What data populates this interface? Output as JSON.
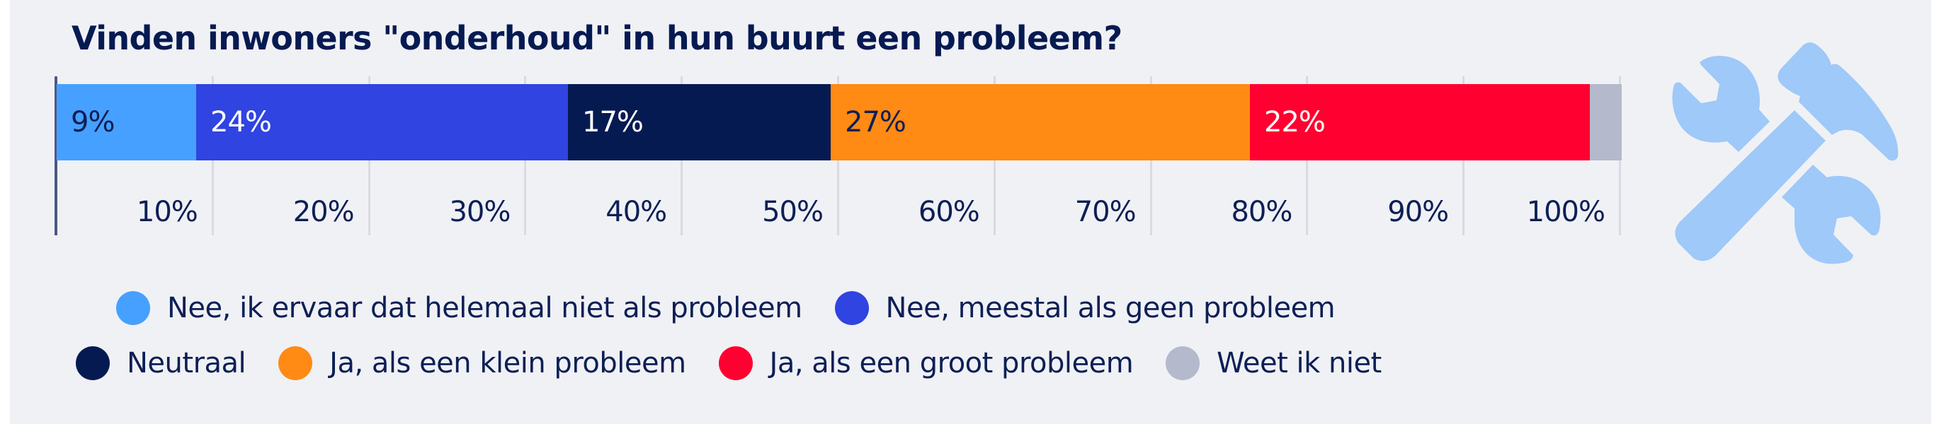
{
  "title": "Vinden inwoners \"onderhoud\" in hun buurt een probleem?",
  "icon": "wrench-hammer-icon",
  "colors": {
    "background": "#f0f1f5",
    "title": "#061a52",
    "text": "#0d1f55",
    "gridline": "#d9dae3",
    "axis": "#4a5a86",
    "icon": "#9ec9f8"
  },
  "segments": [
    {
      "label": "9%",
      "value": 9,
      "color": "#46a0ff",
      "text_color": "#0d1f55"
    },
    {
      "label": "24%",
      "value": 24,
      "color": "#2f44e0",
      "text_color": "#ffffff"
    },
    {
      "label": "17%",
      "value": 17,
      "color": "#061a52",
      "text_color": "#ffffff"
    },
    {
      "label": "27%",
      "value": 27,
      "color": "#ff8a14",
      "text_color": "#0d1f55"
    },
    {
      "label": "22%",
      "value": 22,
      "color": "#ff0030",
      "text_color": "#ffffff"
    },
    {
      "label": "",
      "value": 2,
      "color": "#b4b9cc",
      "text_color": "#0d1f55"
    }
  ],
  "ticks": [
    "10%",
    "20%",
    "30%",
    "40%",
    "50%",
    "60%",
    "70%",
    "80%",
    "90%",
    "100%"
  ],
  "legend": {
    "row1": [
      {
        "label": "Nee, ik ervaar dat helemaal niet als probleem",
        "color": "#46a0ff"
      },
      {
        "label": "Nee, meestal als geen probleem",
        "color": "#2f44e0"
      }
    ],
    "row2": [
      {
        "label": "Neutraal",
        "color": "#061a52"
      },
      {
        "label": "Ja, als een klein probleem",
        "color": "#ff8a14"
      },
      {
        "label": "Ja, als een groot probleem",
        "color": "#ff0030"
      },
      {
        "label": "Weet ik niet",
        "color": "#b4b9cc"
      }
    ]
  },
  "chart_data": {
    "type": "bar",
    "orientation": "horizontal",
    "stacked": true,
    "title": "Vinden inwoners \"onderhoud\" in hun buurt een probleem?",
    "categories": [
      "onderhoud"
    ],
    "series": [
      {
        "name": "Nee, ik ervaar dat helemaal niet als probleem",
        "values": [
          9
        ],
        "color": "#46a0ff"
      },
      {
        "name": "Nee, meestal als geen probleem",
        "values": [
          24
        ],
        "color": "#2f44e0"
      },
      {
        "name": "Neutraal",
        "values": [
          17
        ],
        "color": "#061a52"
      },
      {
        "name": "Ja, als een klein probleem",
        "values": [
          27
        ],
        "color": "#ff8a14"
      },
      {
        "name": "Ja, als een groot probleem",
        "values": [
          22
        ],
        "color": "#ff0030"
      },
      {
        "name": "Weet ik niet",
        "values": [
          2
        ],
        "color": "#b4b9cc"
      }
    ],
    "data_labels": [
      "9%",
      "24%",
      "17%",
      "27%",
      "22%",
      ""
    ],
    "xlabel": "",
    "ylabel": "",
    "xlim": [
      0,
      100
    ],
    "x_ticks": [
      "10%",
      "20%",
      "30%",
      "40%",
      "50%",
      "60%",
      "70%",
      "80%",
      "90%",
      "100%"
    ],
    "grid": true,
    "legend_position": "bottom"
  }
}
